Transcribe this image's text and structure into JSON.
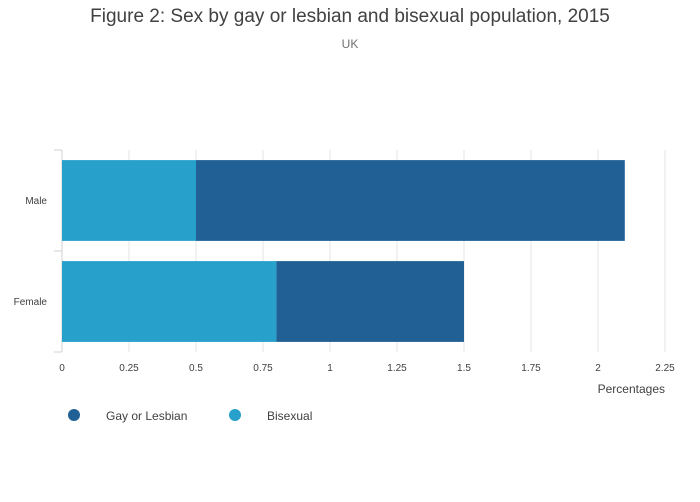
{
  "title": "Figure 2: Sex by gay or lesbian and bisexual population, 2015",
  "subtitle": "UK",
  "chart_data": {
    "type": "bar",
    "orientation": "horizontal",
    "stacked": true,
    "categories": [
      "Male",
      "Female"
    ],
    "series": [
      {
        "name": "Bisexual",
        "color": "#27a0cc",
        "values": [
          0.5,
          0.8
        ]
      },
      {
        "name": "Gay or Lesbian",
        "color": "#206095",
        "values": [
          1.6,
          0.7
        ]
      }
    ],
    "xlabel": "Percentages",
    "ylabel": "",
    "xlim": [
      0,
      2.25
    ],
    "xticks": [
      0,
      0.25,
      0.5,
      0.75,
      1,
      1.25,
      1.5,
      1.75,
      2,
      2.25
    ],
    "xtick_labels": [
      "0",
      "0.25",
      "0.5",
      "0.75",
      "1",
      "1.25",
      "1.5",
      "1.75",
      "2",
      "2.25"
    ],
    "grid": true,
    "legend": {
      "position": "bottom-left",
      "items": [
        {
          "label": "Gay or Lesbian",
          "color": "#206095"
        },
        {
          "label": "Bisexual",
          "color": "#27a0cc"
        }
      ]
    }
  }
}
